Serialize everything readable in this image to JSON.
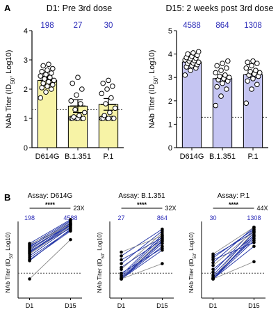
{
  "figure": {
    "panel_a_label": "A",
    "panel_b_label": "B",
    "colors": {
      "bar_yellow": "#f7f3a6",
      "bar_purple": "#c5c5f2",
      "gmt_blue": "#2b2bb8",
      "line_blue": "#1d2fa3",
      "line_gray": "#8a8a8a",
      "axis": "#000000"
    }
  },
  "chart_data": [
    {
      "id": "A-left",
      "type": "bar",
      "title": "D1: Pre 3rd dose",
      "ylabel": "NAb Titer (ID50, Log10)",
      "ylim": [
        0,
        4
      ],
      "yticks": [
        "0",
        "1",
        "2",
        "3",
        "4"
      ],
      "categories": [
        "D614G",
        "B.1.351",
        "P.1"
      ],
      "values": [
        2.3,
        1.42,
        1.48
      ],
      "errors": [
        0.14,
        0.22,
        0.2
      ],
      "gmt_labels": [
        "198",
        "27",
        "30"
      ],
      "detection_limit": 1.3,
      "bar_color": "#f7f3a6",
      "points": [
        [
          1.7,
          1.9,
          2.0,
          2.05,
          2.1,
          2.15,
          2.2,
          2.25,
          2.3,
          2.35,
          2.4,
          2.45,
          2.5,
          2.55,
          2.6,
          2.65,
          2.7,
          2.8,
          2.85
        ],
        [
          1.0,
          1.0,
          1.0,
          1.0,
          1.0,
          1.0,
          1.05,
          1.1,
          1.2,
          1.3,
          1.5,
          1.6,
          1.8,
          2.0,
          2.2,
          2.4
        ],
        [
          1.0,
          1.0,
          1.0,
          1.0,
          1.0,
          1.0,
          1.1,
          1.2,
          1.35,
          1.5,
          1.7,
          1.85,
          2.0,
          2.1,
          2.2,
          2.3
        ]
      ]
    },
    {
      "id": "A-right",
      "type": "bar",
      "title": "D15: 2 weeks post 3rd dose",
      "ylabel": "NAb Titer (ID50, Log10)",
      "ylim": [
        0,
        5
      ],
      "yticks": [
        "0",
        "1",
        "2",
        "3",
        "4",
        "5"
      ],
      "categories": [
        "D614G",
        "B.1.351",
        "P.1"
      ],
      "values": [
        3.66,
        2.95,
        3.12
      ],
      "errors": [
        0.1,
        0.14,
        0.12
      ],
      "gmt_labels": [
        "4588",
        "864",
        "1308"
      ],
      "detection_limit": 1.3,
      "bar_color": "#c5c5f2",
      "points": [
        [
          3.1,
          3.3,
          3.4,
          3.45,
          3.5,
          3.55,
          3.6,
          3.62,
          3.65,
          3.7,
          3.72,
          3.75,
          3.8,
          3.82,
          3.85,
          3.9,
          3.95,
          4.0,
          4.05,
          4.1
        ],
        [
          1.8,
          2.2,
          2.5,
          2.6,
          2.75,
          2.85,
          2.9,
          2.95,
          3.0,
          3.05,
          3.1,
          3.2,
          3.3,
          3.4,
          3.5,
          3.6,
          3.7
        ],
        [
          1.9,
          2.5,
          2.7,
          2.85,
          2.95,
          3.05,
          3.1,
          3.15,
          3.2,
          3.25,
          3.3,
          3.4,
          3.5,
          3.6,
          3.65,
          3.7
        ]
      ]
    },
    {
      "id": "B-1",
      "type": "line",
      "title": "Assay:  D614G",
      "ylabel": "NAb Titer (ID50, Log10)",
      "ylim": [
        0,
        4
      ],
      "categories": [
        "D1",
        "D15"
      ],
      "gmt_labels": [
        "198",
        "4588"
      ],
      "significance": "****",
      "fold_change": "23X",
      "detection_limit": 1.3,
      "pairs": [
        [
          1.0,
          3.05
        ],
        [
          1.95,
          3.6
        ],
        [
          2.0,
          3.5
        ],
        [
          2.1,
          3.55
        ],
        [
          2.2,
          3.7
        ],
        [
          2.3,
          3.75
        ],
        [
          2.35,
          3.8
        ],
        [
          2.4,
          3.85
        ],
        [
          2.45,
          3.65
        ],
        [
          2.5,
          3.9
        ],
        [
          2.55,
          3.95
        ],
        [
          2.6,
          3.8
        ],
        [
          2.65,
          4.0
        ],
        [
          2.7,
          3.9
        ],
        [
          2.75,
          4.05
        ],
        [
          2.8,
          3.85
        ],
        [
          2.85,
          4.1
        ]
      ]
    },
    {
      "id": "B-2",
      "type": "line",
      "title": "Assay:  B.1.351",
      "ylabel": "NAb Titer (ID50, Log10)",
      "ylim": [
        0,
        4
      ],
      "categories": [
        "D1",
        "D15"
      ],
      "gmt_labels": [
        "27",
        "864"
      ],
      "significance": "****",
      "fold_change": "32X",
      "detection_limit": 1.3,
      "pairs": [
        [
          1.0,
          1.8
        ],
        [
          1.0,
          2.5
        ],
        [
          1.0,
          2.7
        ],
        [
          1.0,
          2.85
        ],
        [
          1.0,
          3.0
        ],
        [
          1.0,
          3.1
        ],
        [
          1.05,
          2.95
        ],
        [
          1.1,
          3.2
        ],
        [
          1.2,
          3.3
        ],
        [
          1.3,
          2.6
        ],
        [
          1.5,
          3.4
        ],
        [
          1.6,
          3.05
        ],
        [
          1.8,
          3.5
        ],
        [
          2.0,
          3.15
        ],
        [
          2.2,
          3.6
        ],
        [
          2.4,
          3.25
        ]
      ]
    },
    {
      "id": "B-3",
      "type": "line",
      "title": "Assay:  P.1",
      "ylabel": "NAb Titer (ID50, Log10)",
      "ylim": [
        0,
        4
      ],
      "categories": [
        "D1",
        "D15"
      ],
      "gmt_labels": [
        "30",
        "1308"
      ],
      "significance": "****",
      "fold_change": "44X",
      "detection_limit": 1.3,
      "pairs": [
        [
          1.0,
          1.9
        ],
        [
          1.0,
          2.7
        ],
        [
          1.0,
          3.0
        ],
        [
          1.0,
          3.2
        ],
        [
          1.0,
          3.3
        ],
        [
          1.05,
          3.5
        ],
        [
          1.1,
          3.1
        ],
        [
          1.2,
          3.4
        ],
        [
          1.35,
          3.6
        ],
        [
          1.5,
          3.25
        ],
        [
          1.7,
          3.5
        ],
        [
          1.85,
          3.7
        ],
        [
          2.0,
          2.9
        ],
        [
          2.1,
          3.6
        ],
        [
          2.2,
          3.45
        ],
        [
          2.3,
          3.7
        ]
      ]
    }
  ]
}
